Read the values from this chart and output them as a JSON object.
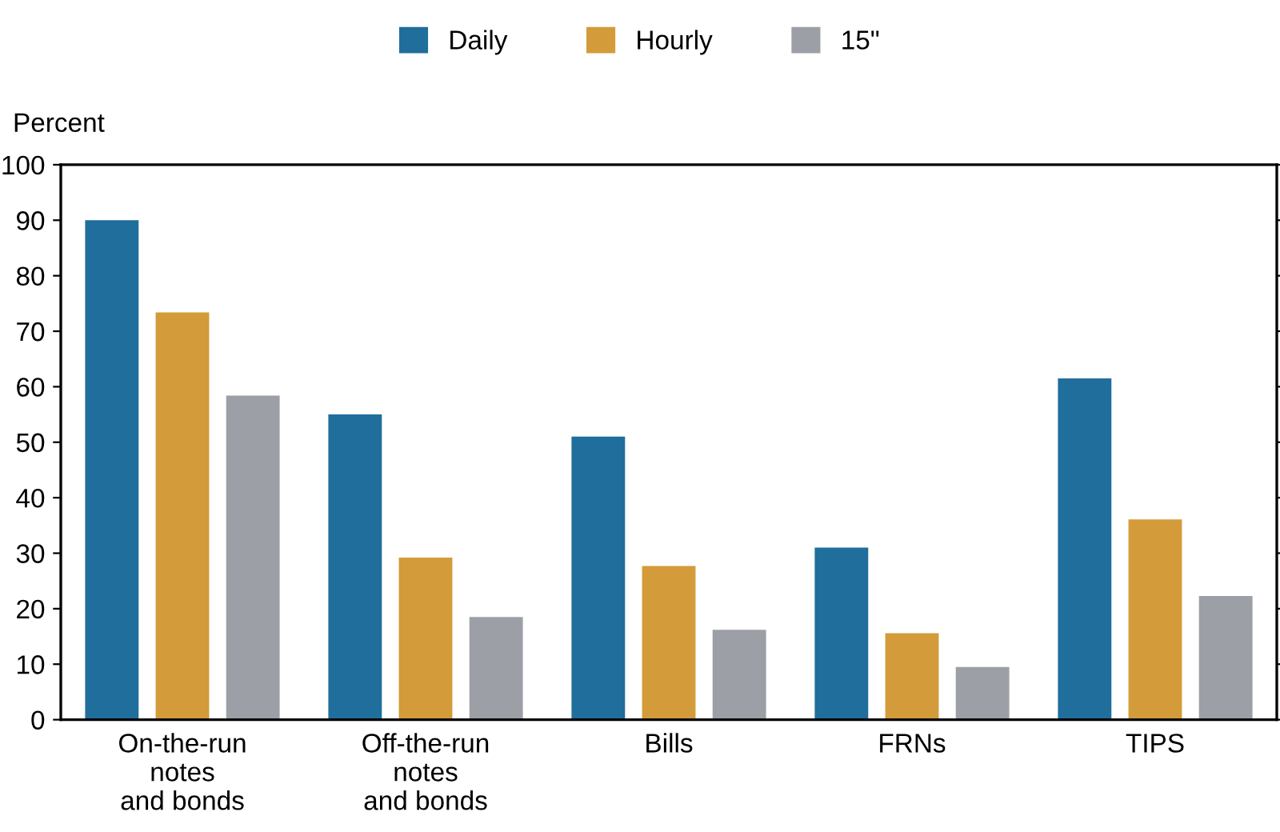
{
  "chart_data": {
    "type": "bar",
    "ylabel": "Percent",
    "categories": [
      "On-the-run\nnotes\nand bonds",
      "Off-the-run\nnotes\nand bonds",
      "Bills",
      "FRNs",
      "TIPS"
    ],
    "series": [
      {
        "name": "Daily",
        "color": "#1f6e9c",
        "values": [
          90,
          55,
          51,
          31,
          61.5
        ]
      },
      {
        "name": "Hourly",
        "color": "#d39b3a",
        "values": [
          73.4,
          29.2,
          27.7,
          15.6,
          36.1
        ]
      },
      {
        "name": "15\"",
        "color": "#9d9fa6",
        "values": [
          58.4,
          18.5,
          16.2,
          9.5,
          22.3
        ]
      }
    ],
    "ylim": [
      0,
      100
    ],
    "yticks": [
      0,
      10,
      20,
      30,
      40,
      50,
      60,
      70,
      80,
      90,
      100
    ],
    "grid": false,
    "legend": "top"
  }
}
